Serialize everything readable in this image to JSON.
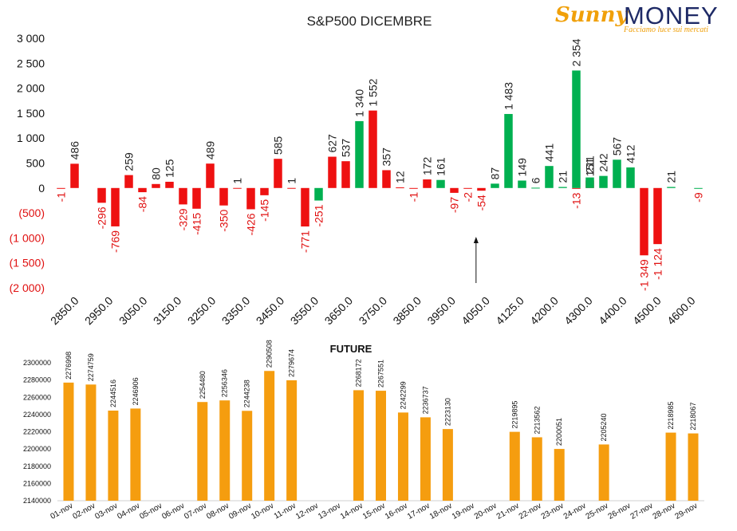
{
  "logo": {
    "brand_first": "Sunny",
    "brand_second": "MONEY",
    "tagline": "Facciamo luce sui mercati"
  },
  "chart_data": [
    {
      "type": "bar",
      "title": "S&P500 DICEMBRE",
      "ylim": [
        -2000,
        3000
      ],
      "yticks": [
        {
          "value": 3000,
          "label": "3 000"
        },
        {
          "value": 2500,
          "label": "2 500"
        },
        {
          "value": 2000,
          "label": "2 000"
        },
        {
          "value": 1500,
          "label": "1 500"
        },
        {
          "value": 1000,
          "label": "1 000"
        },
        {
          "value": 500,
          "label": "500"
        },
        {
          "value": 0,
          "label": "0"
        },
        {
          "value": -500,
          "label": "(500)"
        },
        {
          "value": -1000,
          "label": "(1 000)"
        },
        {
          "value": -1500,
          "label": "(1 500)"
        },
        {
          "value": -2000,
          "label": "(2 000)"
        }
      ],
      "xtick_labels": [
        "2850.0",
        "2950.0",
        "3050.0",
        "3150.0",
        "3250.0",
        "3350.0",
        "3450.0",
        "3550.0",
        "3650.0",
        "3750.0",
        "3850.0",
        "3950.0",
        "4050.0",
        "4125.0",
        "4200.0",
        "4300.0",
        "4400.0",
        "4500.0",
        "4600.0"
      ],
      "series": [
        {
          "color": "#ee1111",
          "values": [
            -1,
            486,
            null,
            -296,
            -769,
            259,
            -84,
            80,
            125,
            -329,
            -415,
            489,
            -350,
            1,
            -426,
            -145,
            585,
            1,
            -771,
            null,
            627,
            537,
            null,
            1552,
            357,
            12,
            -1,
            172,
            null,
            -97,
            -2,
            -54,
            null,
            null,
            null,
            null,
            null,
            null,
            -13,
            151,
            null,
            null,
            null,
            -1349,
            -1124,
            null,
            null,
            null
          ]
        },
        {
          "color": "#00b050",
          "values": [
            null,
            null,
            null,
            null,
            null,
            null,
            null,
            null,
            null,
            null,
            null,
            null,
            null,
            null,
            null,
            null,
            null,
            null,
            null,
            -251,
            null,
            null,
            1340,
            null,
            null,
            null,
            null,
            null,
            161,
            null,
            null,
            null,
            87,
            1483,
            149,
            6,
            441,
            21,
            2354,
            211,
            242,
            567,
            412,
            null,
            null,
            21,
            null,
            -9
          ]
        }
      ],
      "annotation": "arrow pointing up near 4050.0"
    },
    {
      "type": "bar",
      "title": "FUTURE",
      "color": "#f59d0f",
      "ylim": [
        2140000,
        2300000
      ],
      "yticks": [
        2140000,
        2160000,
        2180000,
        2200000,
        2220000,
        2240000,
        2260000,
        2280000,
        2300000
      ],
      "categories": [
        "01-nov",
        "02-nov",
        "03-nov",
        "04-nov",
        "05-nov",
        "06-nov",
        "07-nov",
        "08-nov",
        "09-nov",
        "10-nov",
        "11-nov",
        "12-nov",
        "13-nov",
        "14-nov",
        "15-nov",
        "16-nov",
        "17-nov",
        "18-nov",
        "19-nov",
        "20-nov",
        "21-nov",
        "22-nov",
        "23-nov",
        "24-nov",
        "25-nov",
        "26-nov",
        "27-nov",
        "28-nov",
        "29-nov"
      ],
      "values": [
        2276998,
        2274759,
        2244516,
        2246906,
        null,
        null,
        2254480,
        2256346,
        2244238,
        2290508,
        2279674,
        null,
        null,
        2268172,
        2267551,
        2242299,
        2236737,
        2223130,
        null,
        null,
        2219895,
        2213562,
        2200051,
        null,
        2205240,
        null,
        null,
        2218985,
        2218067
      ]
    }
  ]
}
